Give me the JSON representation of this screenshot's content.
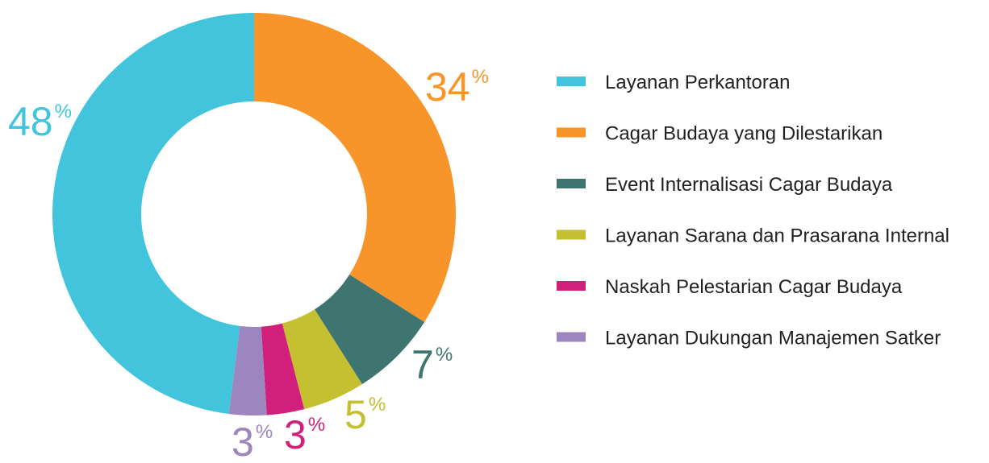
{
  "chart_data": {
    "type": "donut",
    "percent_sign": "%",
    "series": [
      {
        "name": "Layanan Perkantoran",
        "color": "#41c4dc",
        "value": 48
      },
      {
        "name": "Cagar Budaya yang Dilestarikan",
        "color": "#f7952a",
        "value": 34
      },
      {
        "name": "Event Internalisasi Cagar Budaya",
        "color": "#3f7570",
        "value": 7
      },
      {
        "name": "Layanan Sarana dan Prasarana Internal",
        "color": "#c4c032",
        "value": 5
      },
      {
        "name": "Naskah Pelestarian Cagar Budaya",
        "color": "#d11f7c",
        "value": 3
      },
      {
        "name": "Layanan Dukungan Manajemen Satker",
        "color": "#9d85bf",
        "value": 3
      }
    ]
  }
}
